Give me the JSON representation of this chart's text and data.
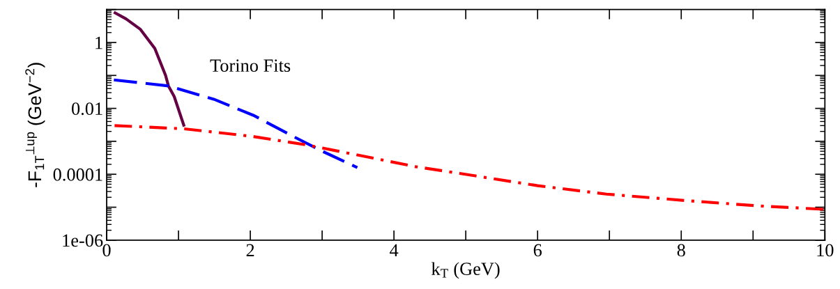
{
  "chart_data": {
    "type": "line",
    "xlabel": "k$_{T}$ (GeV)",
    "ylabel": "-F$_{1T}$$^{⊥up}$ (GeV$^{−2}$)",
    "annotations": [
      "Torino Fits"
    ],
    "log": "y",
    "xlim": [
      0,
      10
    ],
    "ylim": [
      1e-06,
      10
    ],
    "xticks": [
      0,
      {
        "value": 1,
        "label": null
      },
      2,
      {
        "value": 3,
        "label": null
      },
      4,
      {
        "value": 5,
        "label": null
      },
      6,
      {
        "value": 7,
        "label": null
      },
      8,
      {
        "value": 9,
        "label": null
      },
      10
    ],
    "yticks": [
      {
        "value": 1e-06,
        "label": "1e-06"
      },
      {
        "value": 1e-05,
        "label": null
      },
      {
        "value": 0.0001,
        "label": "0.0001"
      },
      {
        "value": 0.001,
        "label": null
      },
      {
        "value": 0.01,
        "label": "0.01"
      },
      {
        "value": 0.1,
        "label": null
      },
      1,
      {
        "value": 10,
        "label": null
      }
    ],
    "series": [
      {
        "color": "#660044",
        "line_style": "solid",
        "x": [
          0.1,
          0.27,
          0.47,
          0.67,
          0.82,
          0.86,
          0.94,
          1.08
        ],
        "values": [
          8.3,
          5.2,
          2.5,
          0.66,
          0.1,
          0.048,
          0.023,
          0.0028
        ]
      },
      {
        "color": "#0000ff",
        "line_style": "dashed",
        "x": [
          0.1,
          0.86,
          1.49,
          2.04,
          2.6,
          2.97,
          3.49
        ],
        "values": [
          0.073,
          0.048,
          0.019,
          0.0062,
          0.0014,
          0.00054,
          0.00016
        ]
      },
      {
        "color": "#ff0000",
        "line_style": "dashdot",
        "x": [
          0.11,
          1.08,
          2.04,
          2.78,
          3.71,
          4.3,
          4.93,
          6.0,
          6.96,
          8.05,
          9.07,
          10.0
        ],
        "values": [
          0.003,
          0.0024,
          0.0014,
          0.00078,
          0.00031,
          0.00017,
          0.000105,
          4.5e-05,
          2.5e-05,
          1.6e-05,
          1.1e-05,
          8.6e-06
        ]
      }
    ]
  }
}
